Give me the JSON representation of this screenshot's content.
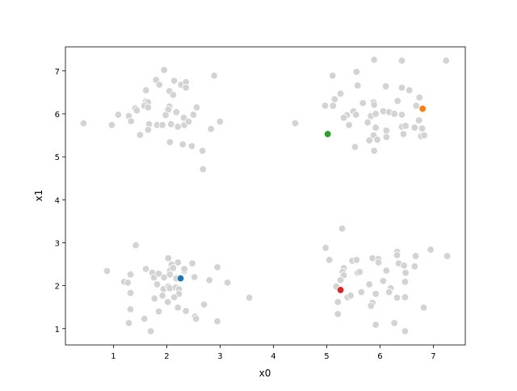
{
  "chart_data": {
    "type": "scatter",
    "title": "",
    "xlabel": "x0",
    "ylabel": "x1",
    "xlim": [
      0.1,
      7.6
    ],
    "ylim": [
      0.62,
      7.56
    ],
    "xticks": [
      1,
      2,
      3,
      4,
      5,
      6,
      7
    ],
    "yticks": [
      1,
      2,
      3,
      4,
      5,
      6,
      7
    ],
    "grid": false,
    "background_color": "#d3d3d3",
    "background_points": [
      [
        0.44,
        5.78
      ],
      [
        0.97,
        5.74
      ],
      [
        1.09,
        5.98
      ],
      [
        1.29,
        5.95
      ],
      [
        1.33,
        5.83
      ],
      [
        1.41,
        6.13
      ],
      [
        1.44,
        6.08
      ],
      [
        1.61,
        6.55
      ],
      [
        1.61,
        6.29
      ],
      [
        1.65,
        6.27
      ],
      [
        1.58,
        6.19
      ],
      [
        1.65,
        6.15
      ],
      [
        1.67,
        5.76
      ],
      [
        1.65,
        5.63
      ],
      [
        1.5,
        5.51
      ],
      [
        1.8,
        6.79
      ],
      [
        1.86,
        6.68
      ],
      [
        1.95,
        7.02
      ],
      [
        2.14,
        6.77
      ],
      [
        2.27,
        6.68
      ],
      [
        2.36,
        6.74
      ],
      [
        2.36,
        6.61
      ],
      [
        2.05,
        6.53
      ],
      [
        2.12,
        6.44
      ],
      [
        2.05,
        6.17
      ],
      [
        2.03,
        6.1
      ],
      [
        1.98,
        5.97
      ],
      [
        2.18,
        6.04
      ],
      [
        1.82,
        5.74
      ],
      [
        1.92,
        5.74
      ],
      [
        2.08,
        5.76
      ],
      [
        2.21,
        5.7
      ],
      [
        2.33,
        5.74
      ],
      [
        2.32,
        5.91
      ],
      [
        2.41,
        5.82
      ],
      [
        2.5,
        5.98
      ],
      [
        2.56,
        6.15
      ],
      [
        2.89,
        6.89
      ],
      [
        3.0,
        5.82
      ],
      [
        2.83,
        5.65
      ],
      [
        2.06,
        5.34
      ],
      [
        2.3,
        5.29
      ],
      [
        2.47,
        5.25
      ],
      [
        2.67,
        5.14
      ],
      [
        2.68,
        4.71
      ],
      [
        4.41,
        5.78
      ],
      [
        5.89,
        7.26
      ],
      [
        6.41,
        7.24
      ],
      [
        7.24,
        7.24
      ],
      [
        5.11,
        6.89
      ],
      [
        5.56,
        6.98
      ],
      [
        5.58,
        6.66
      ],
      [
        6.11,
        6.64
      ],
      [
        6.41,
        6.61
      ],
      [
        6.55,
        6.55
      ],
      [
        5.26,
        6.47
      ],
      [
        5.15,
        6.34
      ],
      [
        4.97,
        6.19
      ],
      [
        5.12,
        6.19
      ],
      [
        5.68,
        6.25
      ],
      [
        5.88,
        6.27
      ],
      [
        5.89,
        6.21
      ],
      [
        6.33,
        6.3
      ],
      [
        6.74,
        6.38
      ],
      [
        6.68,
        6.19
      ],
      [
        5.5,
        6.06
      ],
      [
        5.55,
        5.98
      ],
      [
        5.38,
        5.97
      ],
      [
        5.32,
        5.91
      ],
      [
        5.83,
        5.95
      ],
      [
        5.92,
        6.0
      ],
      [
        6.06,
        6.06
      ],
      [
        6.17,
        6.04
      ],
      [
        6.27,
        6.0
      ],
      [
        6.41,
        5.98
      ],
      [
        5.77,
        5.8
      ],
      [
        5.42,
        5.74
      ],
      [
        5.92,
        5.68
      ],
      [
        6.12,
        5.61
      ],
      [
        6.41,
        5.7
      ],
      [
        6.48,
        5.72
      ],
      [
        6.65,
        5.68
      ],
      [
        6.79,
        5.66
      ],
      [
        6.73,
        5.85
      ],
      [
        6.44,
        5.53
      ],
      [
        5.88,
        5.5
      ],
      [
        5.8,
        5.38
      ],
      [
        5.95,
        5.4
      ],
      [
        6.12,
        5.46
      ],
      [
        6.77,
        5.48
      ],
      [
        6.83,
        5.5
      ],
      [
        5.53,
        5.23
      ],
      [
        5.89,
        5.14
      ],
      [
        1.42,
        2.94
      ],
      [
        0.88,
        2.34
      ],
      [
        1.32,
        2.26
      ],
      [
        1.2,
        2.09
      ],
      [
        1.27,
        2.07
      ],
      [
        1.32,
        1.83
      ],
      [
        1.32,
        1.45
      ],
      [
        1.29,
        1.13
      ],
      [
        1.58,
        1.23
      ],
      [
        1.7,
        0.94
      ],
      [
        1.85,
        1.4
      ],
      [
        1.77,
        1.7
      ],
      [
        1.82,
        2.03
      ],
      [
        1.61,
        2.39
      ],
      [
        1.73,
        2.3
      ],
      [
        1.76,
        2.19
      ],
      [
        1.85,
        2.28
      ],
      [
        1.95,
        2.19
      ],
      [
        2.03,
        2.64
      ],
      [
        2.09,
        2.49
      ],
      [
        2.21,
        2.54
      ],
      [
        2.06,
        2.35
      ],
      [
        2.06,
        2.26
      ],
      [
        2.12,
        2.41
      ],
      [
        2.18,
        2.17
      ],
      [
        2.33,
        2.34
      ],
      [
        2.33,
        2.39
      ],
      [
        2.48,
        2.52
      ],
      [
        2.52,
        2.2
      ],
      [
        2.8,
        2.13
      ],
      [
        2.95,
        2.43
      ],
      [
        3.14,
        2.07
      ],
      [
        3.55,
        1.72
      ],
      [
        1.94,
        1.92
      ],
      [
        2.03,
        1.98
      ],
      [
        2.06,
        1.94
      ],
      [
        2.17,
        1.96
      ],
      [
        2.23,
        1.92
      ],
      [
        2.23,
        1.81
      ],
      [
        2.14,
        1.73
      ],
      [
        1.92,
        1.77
      ],
      [
        2.02,
        1.62
      ],
      [
        2.21,
        1.49
      ],
      [
        2.36,
        1.41
      ],
      [
        2.53,
        1.28
      ],
      [
        2.55,
        1.23
      ],
      [
        2.7,
        1.56
      ],
      [
        2.95,
        1.17
      ],
      [
        5.29,
        3.33
      ],
      [
        4.98,
        2.88
      ],
      [
        5.05,
        2.6
      ],
      [
        5.32,
        2.41
      ],
      [
        5.3,
        2.32
      ],
      [
        5.32,
        2.24
      ],
      [
        5.26,
        2.13
      ],
      [
        5.18,
        1.98
      ],
      [
        5.21,
        1.62
      ],
      [
        5.21,
        1.34
      ],
      [
        5.39,
        1.73
      ],
      [
        5.45,
        1.77
      ],
      [
        5.48,
        2.58
      ],
      [
        5.56,
        2.6
      ],
      [
        5.58,
        2.3
      ],
      [
        5.62,
        2.32
      ],
      [
        5.65,
        1.85
      ],
      [
        5.8,
        2.03
      ],
      [
        5.86,
        2.64
      ],
      [
        5.97,
        2.62
      ],
      [
        5.97,
        2.54
      ],
      [
        5.92,
        1.81
      ],
      [
        5.86,
        1.6
      ],
      [
        5.83,
        1.53
      ],
      [
        5.92,
        1.09
      ],
      [
        6.06,
        2.11
      ],
      [
        6.12,
        2.35
      ],
      [
        6.2,
        1.94
      ],
      [
        6.17,
        1.85
      ],
      [
        6.32,
        2.79
      ],
      [
        6.32,
        2.71
      ],
      [
        6.35,
        2.52
      ],
      [
        6.45,
        2.47
      ],
      [
        6.48,
        2.3
      ],
      [
        6.47,
        2.09
      ],
      [
        6.32,
        1.72
      ],
      [
        6.47,
        1.73
      ],
      [
        6.65,
        2.45
      ],
      [
        6.67,
        2.69
      ],
      [
        6.95,
        2.84
      ],
      [
        7.26,
        2.69
      ],
      [
        6.82,
        1.49
      ],
      [
        6.27,
        1.13
      ],
      [
        6.47,
        0.94
      ]
    ],
    "highlight_points": [
      {
        "x": 2.26,
        "y": 2.17,
        "color": "#1f77b4"
      },
      {
        "x": 6.8,
        "y": 6.12,
        "color": "#ff7f0e"
      },
      {
        "x": 5.02,
        "y": 5.53,
        "color": "#2ca02c"
      },
      {
        "x": 5.26,
        "y": 1.9,
        "color": "#d62728"
      }
    ]
  }
}
